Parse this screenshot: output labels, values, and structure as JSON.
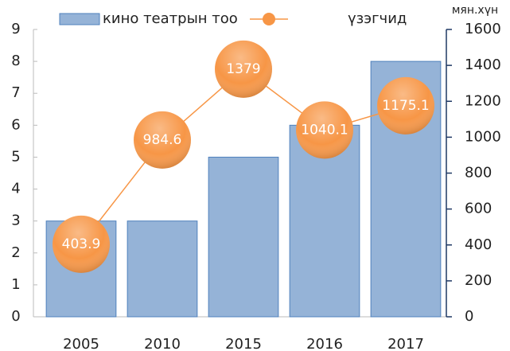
{
  "chart_data": {
    "type": "bar+line",
    "categories": [
      "2005",
      "2010",
      "2015",
      "2016",
      "2017"
    ],
    "series": [
      {
        "name": "кино театрын тоо",
        "type": "bar",
        "color": "#95b3d7",
        "values": [
          3,
          3,
          5,
          6,
          8
        ]
      },
      {
        "name": "үзэгчид",
        "type": "line",
        "axis": "y2",
        "color": "#f79646",
        "values": [
          403.9,
          984.6,
          1379,
          1040.1,
          1175.1
        ]
      }
    ],
    "ylim": [
      0,
      9
    ],
    "yticks": [
      0,
      1,
      2,
      3,
      4,
      5,
      6,
      7,
      8,
      9
    ],
    "y2lim": [
      0,
      1600
    ],
    "y2ticks": [
      0,
      200,
      400,
      600,
      800,
      1000,
      1200,
      1400,
      1600
    ],
    "y2label": "мян.хүн",
    "legend": "top"
  }
}
